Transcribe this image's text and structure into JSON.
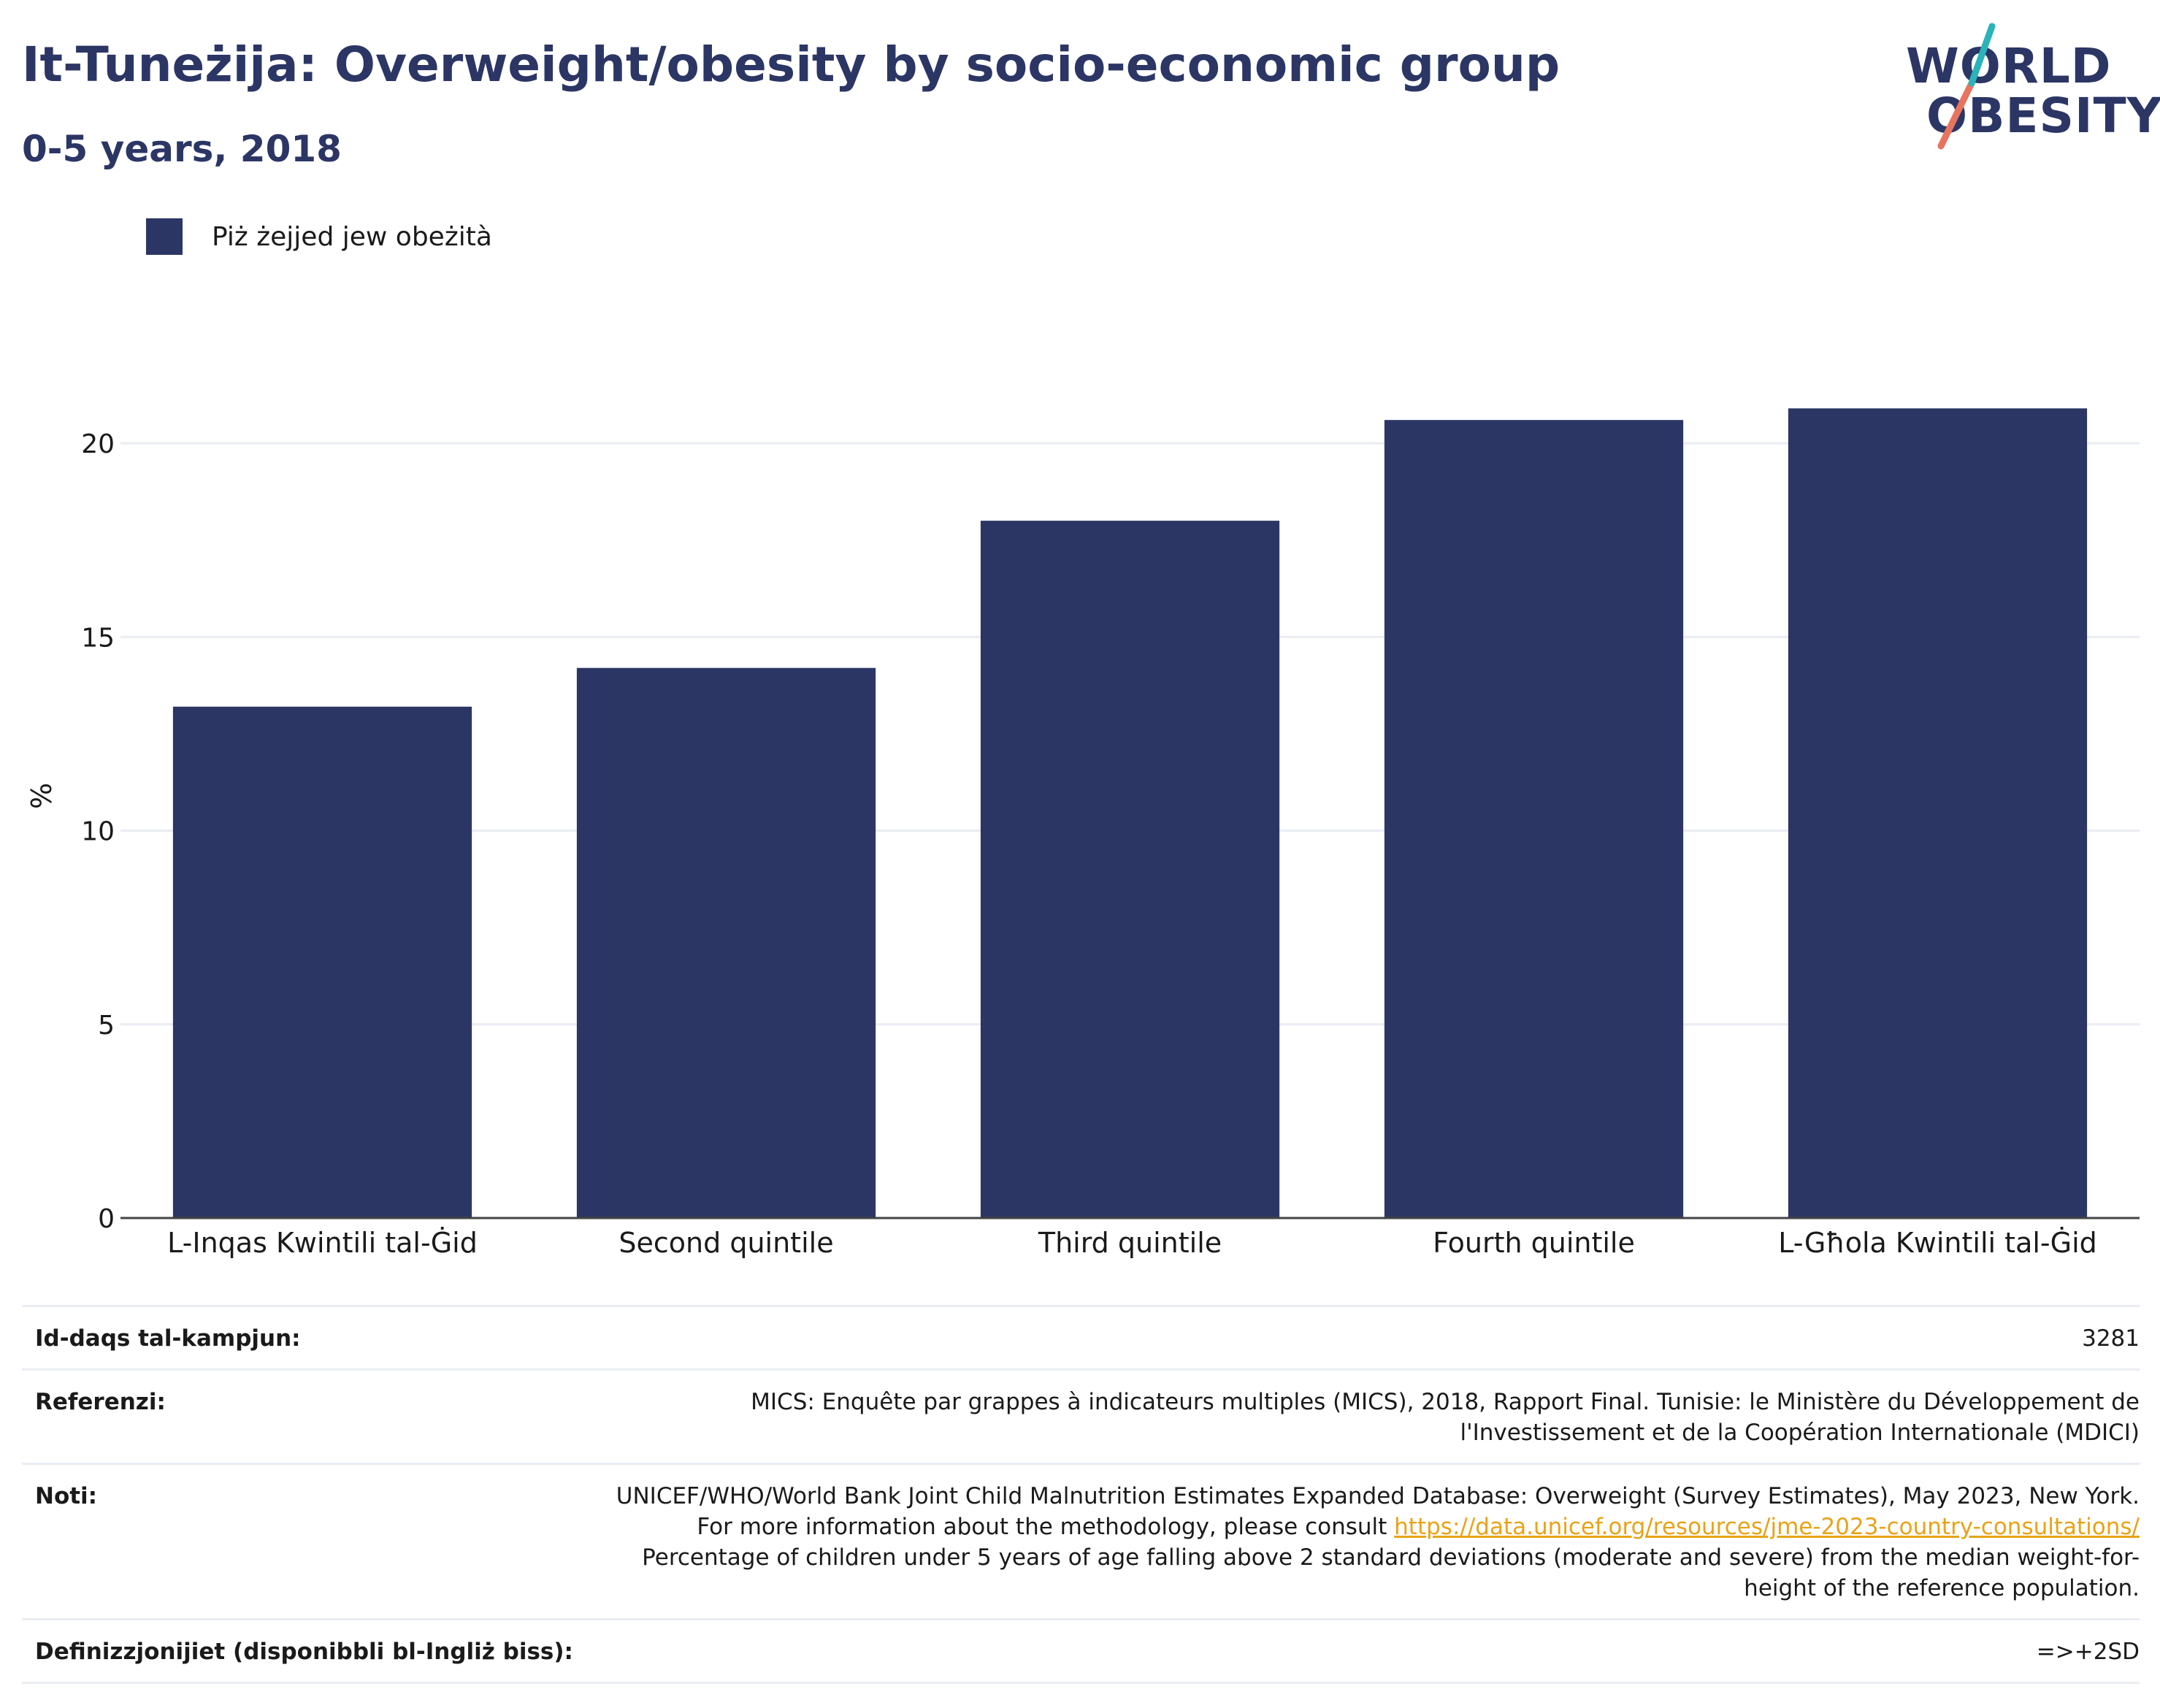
{
  "header": {
    "title": "It-Tuneżija: Overweight/obesity by socio-economic group",
    "subtitle": "0-5 years, 2018"
  },
  "logo": {
    "line1": "WORLD",
    "line2": "OBESITY"
  },
  "legend": {
    "label": "Piż żejjed jew obeżità"
  },
  "colors": {
    "bar": "#2b3665",
    "grid": "#e9ecf3",
    "axis": "#444444",
    "link": "#e8a317",
    "logo_teal": "#2ab3b8",
    "logo_coral": "#e8735f"
  },
  "chart_data": {
    "type": "bar",
    "categories": [
      "L-Inqas Kwintili tal-Ġid",
      "Second quintile",
      "Third quintile",
      "Fourth quintile",
      "L-Għola Kwintili tal-Ġid"
    ],
    "series": [
      {
        "name": "Piż żejjed jew obeżità",
        "values": [
          13.2,
          14.2,
          18.0,
          20.6,
          20.9
        ]
      }
    ],
    "ylabel": "%",
    "ylim": [
      0,
      22.5
    ],
    "yticks": [
      0,
      5,
      10,
      15,
      20
    ],
    "grid": true,
    "legend_position": "top-left"
  },
  "table": {
    "sample_size": {
      "label": "Id-daqs tal-kampjun:",
      "value": "3281"
    },
    "references": {
      "label": "Referenzi:",
      "value": "MICS: Enquête par grappes à indicateurs multiples (MICS), 2018, Rapport Final. Tunisie: le Ministère du Développement de l'Investissement et de la Coopération Internationale (MDICI)"
    },
    "notes": {
      "label": "Noti:",
      "text_before": "UNICEF/WHO/World Bank Joint Child Malnutrition Estimates Expanded Database: Overweight (Survey Estimates), May 2023, New York. For more information about the methodology, please consult ",
      "link": "https://data.unicef.org/resources/jme-2023-country-consultations/",
      "text_after": " Percentage of children under 5 years of age falling above 2 standard deviations (moderate and severe) from the median weight-for-height of the reference population."
    },
    "definitions": {
      "label": "Definizzjonijiet (disponibbli bl-Ingliż biss):",
      "value": "=>+2SD"
    }
  }
}
